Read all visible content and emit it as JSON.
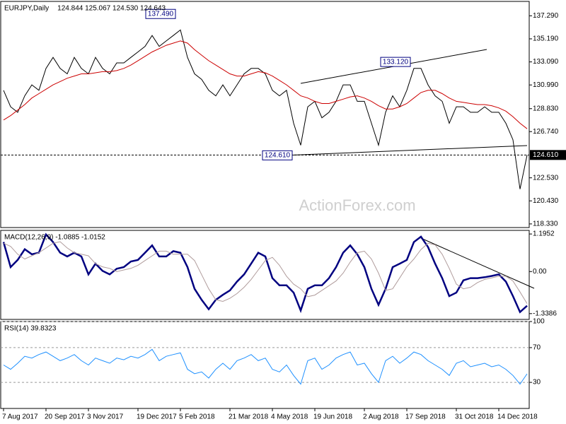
{
  "chart_data": [
    {
      "type": "line",
      "title": "EURJPY,Daily",
      "subtitle": "124.844 125.067 124.530 124.643",
      "watermark": "ActionForex.com",
      "ylim": [
        118.0,
        138.6
      ],
      "yticks": [
        {
          "value": 137.29,
          "label": "137.290"
        },
        {
          "value": 135.19,
          "label": "135.190"
        },
        {
          "value": 133.09,
          "label": "133.090"
        },
        {
          "value": 130.99,
          "label": "130.990"
        },
        {
          "value": 128.83,
          "label": "128.830"
        },
        {
          "value": 126.74,
          "label": "126.740"
        },
        {
          "value": 122.53,
          "label": "122.530"
        },
        {
          "value": 120.43,
          "label": "120.430"
        },
        {
          "value": 118.33,
          "label": "118.330"
        }
      ],
      "grid": false,
      "current_price": {
        "value": 124.61,
        "label": "124.610"
      },
      "annotations": [
        {
          "label": "137.490",
          "value": 137.49
        },
        {
          "label": "133.120",
          "value": 133.12
        },
        {
          "label": "124.610",
          "value": 124.61
        }
      ],
      "series": [
        {
          "name": "EURJPY",
          "color": "#000000",
          "values": [
            130.5,
            129,
            128.5,
            130,
            131,
            130.5,
            132.5,
            133.5,
            132.5,
            132,
            133.5,
            132.5,
            132,
            133.5,
            132.5,
            132,
            133,
            133,
            133.5,
            134,
            134.5,
            135.5,
            134.5,
            135,
            135.5,
            136,
            133.5,
            132,
            131.5,
            130.5,
            130,
            131,
            130,
            131,
            132,
            132.5,
            132.5,
            132,
            130.5,
            130,
            130.5,
            127.5,
            125.5,
            129,
            129.5,
            128,
            128.5,
            129.5,
            131,
            131,
            129.5,
            129.5,
            127.5,
            125.5,
            128.5,
            130,
            129,
            130.5,
            132.5,
            132.5,
            131,
            130,
            129.5,
            127.5,
            129,
            129,
            128.5,
            128.5,
            129,
            128.5,
            128.5,
            127.5,
            126,
            121.5,
            124.6
          ]
        },
        {
          "name": "MA",
          "color": "#cc0000",
          "values": [
            127.8,
            128.2,
            128.7,
            129.2,
            129.8,
            130.2,
            130.6,
            131,
            131.3,
            131.6,
            131.8,
            132,
            132,
            132.1,
            132.2,
            132.2,
            132.3,
            132.5,
            132.8,
            133.2,
            133.6,
            134,
            134.3,
            134.6,
            134.8,
            135,
            134.8,
            134.2,
            133.7,
            133.2,
            132.8,
            132.4,
            132,
            131.8,
            131.8,
            132,
            132.2,
            132.1,
            131.8,
            131.4,
            131,
            130.5,
            130,
            129.8,
            129.5,
            129.3,
            129.3,
            129.5,
            129.7,
            129.9,
            130,
            129.8,
            129.5,
            129.1,
            128.8,
            128.8,
            129,
            129.3,
            129.8,
            130.3,
            130.5,
            130.5,
            130.2,
            129.8,
            129.5,
            129.4,
            129.3,
            129.2,
            129.2,
            129.1,
            128.9,
            128.6,
            128.1,
            127.5,
            127
          ]
        }
      ]
    },
    {
      "type": "line",
      "title": "MACD(12,26,9) -1.0885 -1.0152",
      "ylim": [
        -1.523,
        1.31
      ],
      "yticks": [
        1.1952,
        {
          "value": 0,
          "label": "0.00"
        },
        -1.3386
      ],
      "grid": false,
      "series": [
        {
          "name": "MACD",
          "color": "#000080",
          "values": [
            0.94,
            0.14,
            0.37,
            0.71,
            0.55,
            0.6,
            1.18,
            0.94,
            0.6,
            0.48,
            0.6,
            0.48,
            -0.09,
            0.25,
            0.02,
            -0.09,
            0.09,
            0.14,
            0.32,
            0.37,
            0.6,
            0.83,
            0.48,
            0.48,
            0.65,
            0.6,
            0.14,
            -0.55,
            -0.9,
            -1.2,
            -0.9,
            -0.74,
            -0.6,
            -0.32,
            -0.09,
            0.25,
            0.6,
            0.48,
            -0.21,
            -0.44,
            -0.44,
            -0.67,
            -1.24,
            -0.55,
            -0.44,
            -0.44,
            -0.21,
            0.14,
            0.6,
            0.83,
            0.55,
            0.14,
            -0.55,
            -1.06,
            -0.55,
            0.14,
            0.25,
            0.37,
            0.94,
            1.11,
            0.78,
            0.25,
            -0.21,
            -0.78,
            -0.67,
            -0.28,
            -0.21,
            -0.21,
            -0.18,
            -0.14,
            -0.09,
            -0.32,
            -0.78,
            -1.29,
            -1.09
          ]
        },
        {
          "name": "Signal",
          "color": "#b09c9c",
          "values": [
            0.9,
            0.8,
            0.55,
            0.4,
            0.5,
            0.6,
            0.75,
            0.9,
            0.95,
            0.75,
            0.6,
            0.55,
            0.5,
            0.25,
            0.15,
            0.1,
            0.0,
            0.05,
            0.1,
            0.2,
            0.35,
            0.5,
            0.65,
            0.65,
            0.55,
            0.55,
            0.55,
            0.35,
            -0.1,
            -0.55,
            -0.9,
            -0.95,
            -0.85,
            -0.7,
            -0.5,
            -0.25,
            0.05,
            0.35,
            0.45,
            0.2,
            -0.15,
            -0.4,
            -0.55,
            -0.8,
            -0.75,
            -0.6,
            -0.45,
            -0.3,
            -0.05,
            0.3,
            0.6,
            0.65,
            0.4,
            -0.05,
            -0.6,
            -0.55,
            -0.2,
            0.15,
            0.4,
            0.7,
            0.9,
            0.85,
            0.55,
            0.1,
            -0.4,
            -0.55,
            -0.5,
            -0.35,
            -0.25,
            -0.2,
            -0.15,
            -0.15,
            -0.3,
            -0.65,
            -1.02
          ]
        }
      ]
    },
    {
      "type": "line",
      "title": "RSI(14) 39.8323",
      "ylim": [
        0,
        100
      ],
      "yticks": [
        100,
        70,
        30
      ],
      "grid": true,
      "categories": [
        "7 Aug 2017",
        null,
        null,
        null,
        null,
        null,
        "20 Sep 2017",
        null,
        null,
        null,
        null,
        null,
        "3 Nov 2017",
        null,
        null,
        null,
        null,
        null,
        null,
        "19 Dec 2017",
        null,
        null,
        null,
        null,
        null,
        "5 Feb 2018",
        null,
        null,
        null,
        null,
        null,
        null,
        "21 Mar 2018",
        null,
        null,
        null,
        null,
        null,
        "4 May 2018",
        null,
        null,
        null,
        null,
        null,
        "19 Jun 2018",
        null,
        null,
        null,
        null,
        null,
        null,
        "2 Aug 2018",
        null,
        null,
        null,
        null,
        null,
        "17 Sep 2018",
        null,
        null,
        null,
        null,
        null,
        null,
        "31 Oct 2018",
        null,
        null,
        null,
        null,
        null,
        "14 Dec 2018",
        null,
        null,
        null,
        null
      ],
      "series": [
        {
          "name": "RSI",
          "color": "#1e90ff",
          "values": [
            50,
            45,
            52,
            60,
            58,
            62,
            65,
            60,
            55,
            58,
            62,
            55,
            50,
            58,
            55,
            52,
            58,
            56,
            60,
            58,
            62,
            68,
            55,
            60,
            62,
            64,
            45,
            40,
            42,
            35,
            45,
            52,
            45,
            55,
            58,
            62,
            55,
            58,
            45,
            42,
            50,
            38,
            28,
            55,
            58,
            45,
            50,
            58,
            62,
            65,
            50,
            52,
            40,
            30,
            55,
            60,
            52,
            58,
            65,
            62,
            55,
            50,
            45,
            38,
            52,
            55,
            48,
            50,
            52,
            48,
            50,
            45,
            38,
            28,
            39.83
          ]
        }
      ]
    }
  ]
}
